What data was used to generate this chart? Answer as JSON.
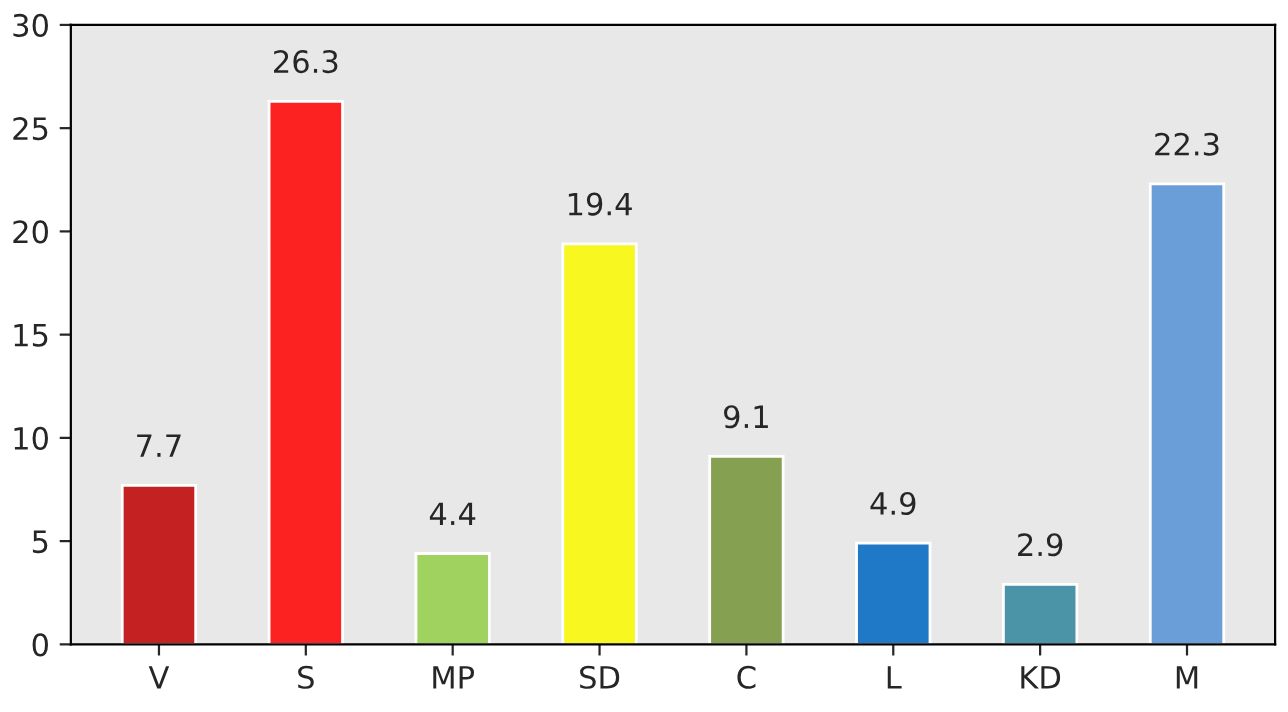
{
  "chart_data": {
    "type": "bar",
    "categories": [
      "V",
      "S",
      "MP",
      "SD",
      "C",
      "L",
      "KD",
      "M"
    ],
    "values": [
      7.7,
      26.3,
      4.4,
      19.4,
      9.1,
      4.9,
      2.9,
      22.3
    ],
    "colors": [
      "#c42222",
      "#fd2222",
      "#a0d260",
      "#f8f820",
      "#84a050",
      "#2079c7",
      "#4b94a8",
      "#6a9ed8"
    ],
    "ylim": [
      0,
      30
    ],
    "yticks": [
      0,
      5,
      10,
      15,
      20,
      25,
      30
    ],
    "grid": false,
    "data_labels": true,
    "legend": false
  }
}
